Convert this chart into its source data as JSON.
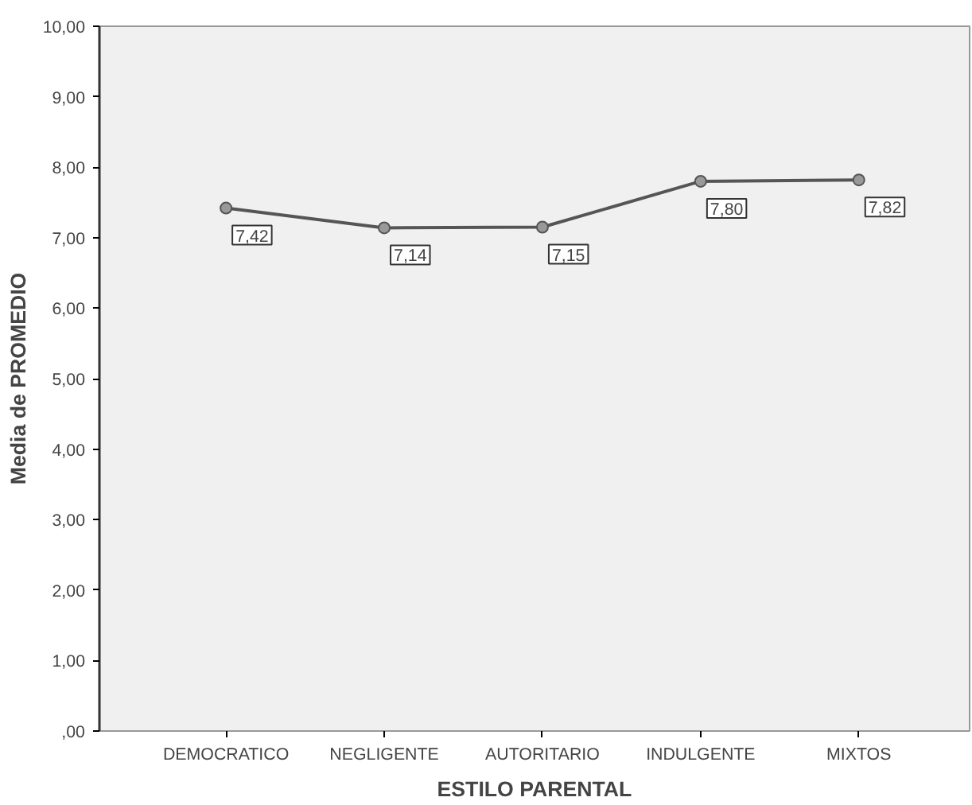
{
  "chart_data": {
    "type": "line",
    "xlabel": "ESTILO PARENTAL",
    "ylabel": "Media de PROMEDIO",
    "categories": [
      "DEMOCRATICO",
      "NEGLIGENTE",
      "AUTORITARIO",
      "INDULGENTE",
      "MIXTOS"
    ],
    "series": [
      {
        "color": "#555555",
        "values": [
          7.42,
          7.14,
          7.15,
          7.8,
          7.82
        ],
        "value_labels": [
          "7,42",
          "7,14",
          "7,15",
          "7,80",
          "7,82"
        ]
      }
    ],
    "ylim": [
      0,
      10
    ],
    "yticks": [
      {
        "value": 0,
        "label": ",00"
      },
      {
        "value": 1,
        "label": "1,00"
      },
      {
        "value": 2,
        "label": "2,00"
      },
      {
        "value": 3,
        "label": "3,00"
      },
      {
        "value": 4,
        "label": "4,00"
      },
      {
        "value": 5,
        "label": "5,00"
      },
      {
        "value": 6,
        "label": "6,00"
      },
      {
        "value": 7,
        "label": "7,00"
      },
      {
        "value": 8,
        "label": "8,00"
      },
      {
        "value": 9,
        "label": "9,00"
      },
      {
        "value": 10,
        "label": "10,00"
      }
    ],
    "marker": "circle",
    "grid": false
  }
}
